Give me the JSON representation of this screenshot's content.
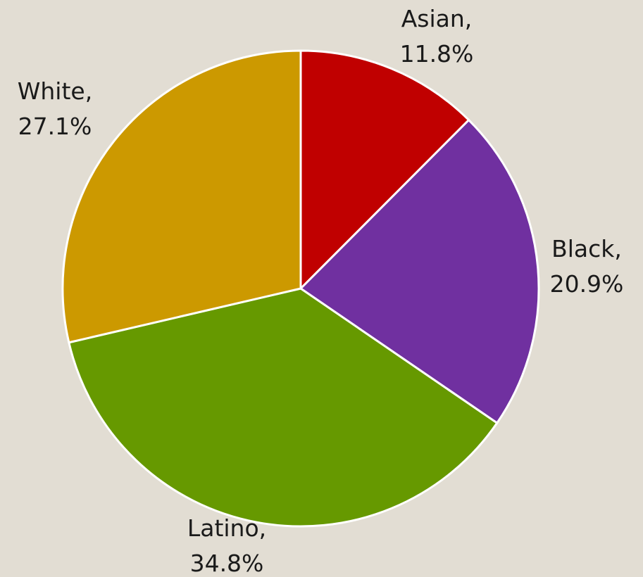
{
  "chart_data": {
    "type": "pie",
    "title": "",
    "legend": "none",
    "start_angle_deg": 0,
    "direction": "clockwise",
    "slices": [
      {
        "label": "Asian",
        "value": 11.8,
        "display": "11.8%",
        "color": "#c00000"
      },
      {
        "label": "Black",
        "value": 20.9,
        "display": "20.9%",
        "color": "#7030a0"
      },
      {
        "label": "Latino",
        "value": 34.8,
        "display": "34.8%",
        "color": "#669900"
      },
      {
        "label": "White",
        "value": 27.1,
        "display": "27.1%",
        "color": "#cc9900"
      }
    ]
  }
}
